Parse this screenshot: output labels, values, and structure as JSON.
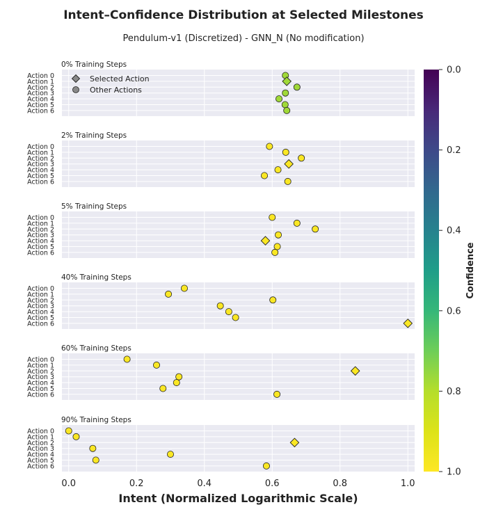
{
  "chart_data": {
    "type": "scatter",
    "title": "Intent–Confidence Distribution at Selected Milestones",
    "subtitle": "Pendulum-v1 (Discretized) - GNN_N (No modification)",
    "xlabel": "Intent (Normalized Logarithmic Scale)",
    "xlim": [
      -0.02,
      1.02
    ],
    "x_ticks": [
      "0.0",
      "0.2",
      "0.4",
      "0.6",
      "0.8",
      "1.0"
    ],
    "x_tick_values": [
      0.0,
      0.2,
      0.4,
      0.6,
      0.8,
      1.0
    ],
    "actions": [
      "Action 0",
      "Action 1",
      "Action 2",
      "Action 3",
      "Action 4",
      "Action 5",
      "Action 6"
    ],
    "legend": {
      "placement": "top-left of first panel",
      "selected_label": "Selected Action",
      "other_label": "Other Actions"
    },
    "colorbar": {
      "label": "Confidence",
      "colormap": "viridis_r",
      "range": [
        0.0,
        1.0
      ],
      "ticks": [
        "0.0",
        "0.2",
        "0.4",
        "0.6",
        "0.8",
        "1.0"
      ],
      "tick_values": [
        0.0,
        0.2,
        0.4,
        0.6,
        0.8,
        1.0
      ]
    },
    "grid": true,
    "panels": [
      {
        "label": "0% Training Steps",
        "selected_action": 1,
        "points": [
          {
            "action": 0,
            "intent": 0.639,
            "confidence": 0.77
          },
          {
            "action": 1,
            "intent": 0.643,
            "confidence": 0.77
          },
          {
            "action": 2,
            "intent": 0.673,
            "confidence": 0.77
          },
          {
            "action": 3,
            "intent": 0.639,
            "confidence": 0.77
          },
          {
            "action": 4,
            "intent": 0.62,
            "confidence": 0.77
          },
          {
            "action": 5,
            "intent": 0.638,
            "confidence": 0.77
          },
          {
            "action": 6,
            "intent": 0.643,
            "confidence": 0.77
          }
        ]
      },
      {
        "label": "2% Training Steps",
        "selected_action": 3,
        "points": [
          {
            "action": 0,
            "intent": 0.592,
            "confidence": 0.99
          },
          {
            "action": 1,
            "intent": 0.64,
            "confidence": 0.99
          },
          {
            "action": 2,
            "intent": 0.686,
            "confidence": 0.99
          },
          {
            "action": 3,
            "intent": 0.649,
            "confidence": 0.99
          },
          {
            "action": 4,
            "intent": 0.617,
            "confidence": 0.99
          },
          {
            "action": 5,
            "intent": 0.577,
            "confidence": 0.99
          },
          {
            "action": 6,
            "intent": 0.646,
            "confidence": 0.99
          }
        ]
      },
      {
        "label": "5% Training Steps",
        "selected_action": 4,
        "points": [
          {
            "action": 0,
            "intent": 0.6,
            "confidence": 0.99
          },
          {
            "action": 1,
            "intent": 0.673,
            "confidence": 0.99
          },
          {
            "action": 2,
            "intent": 0.727,
            "confidence": 0.99
          },
          {
            "action": 3,
            "intent": 0.618,
            "confidence": 0.99
          },
          {
            "action": 4,
            "intent": 0.58,
            "confidence": 0.99
          },
          {
            "action": 5,
            "intent": 0.615,
            "confidence": 0.99
          },
          {
            "action": 6,
            "intent": 0.608,
            "confidence": 0.99
          }
        ]
      },
      {
        "label": "40% Training Steps",
        "selected_action": 6,
        "points": [
          {
            "action": 0,
            "intent": 0.341,
            "confidence": 0.99
          },
          {
            "action": 1,
            "intent": 0.294,
            "confidence": 0.99
          },
          {
            "action": 2,
            "intent": 0.602,
            "confidence": 0.99
          },
          {
            "action": 3,
            "intent": 0.447,
            "confidence": 0.99
          },
          {
            "action": 4,
            "intent": 0.472,
            "confidence": 0.99
          },
          {
            "action": 5,
            "intent": 0.492,
            "confidence": 0.99
          },
          {
            "action": 6,
            "intent": 1.0,
            "confidence": 0.99
          }
        ]
      },
      {
        "label": "60% Training Steps",
        "selected_action": 2,
        "points": [
          {
            "action": 0,
            "intent": 0.172,
            "confidence": 0.99
          },
          {
            "action": 1,
            "intent": 0.259,
            "confidence": 0.99
          },
          {
            "action": 2,
            "intent": 0.845,
            "confidence": 0.99
          },
          {
            "action": 3,
            "intent": 0.325,
            "confidence": 0.99
          },
          {
            "action": 4,
            "intent": 0.318,
            "confidence": 0.99
          },
          {
            "action": 5,
            "intent": 0.278,
            "confidence": 0.99
          },
          {
            "action": 6,
            "intent": 0.614,
            "confidence": 0.99
          }
        ]
      },
      {
        "label": "90% Training Steps",
        "selected_action": 2,
        "points": [
          {
            "action": 0,
            "intent": 0.0,
            "confidence": 0.99
          },
          {
            "action": 1,
            "intent": 0.022,
            "confidence": 0.99
          },
          {
            "action": 2,
            "intent": 0.666,
            "confidence": 0.99
          },
          {
            "action": 3,
            "intent": 0.071,
            "confidence": 0.99
          },
          {
            "action": 4,
            "intent": 0.3,
            "confidence": 0.99
          },
          {
            "action": 5,
            "intent": 0.08,
            "confidence": 0.99
          },
          {
            "action": 6,
            "intent": 0.583,
            "confidence": 0.99
          }
        ]
      }
    ]
  }
}
